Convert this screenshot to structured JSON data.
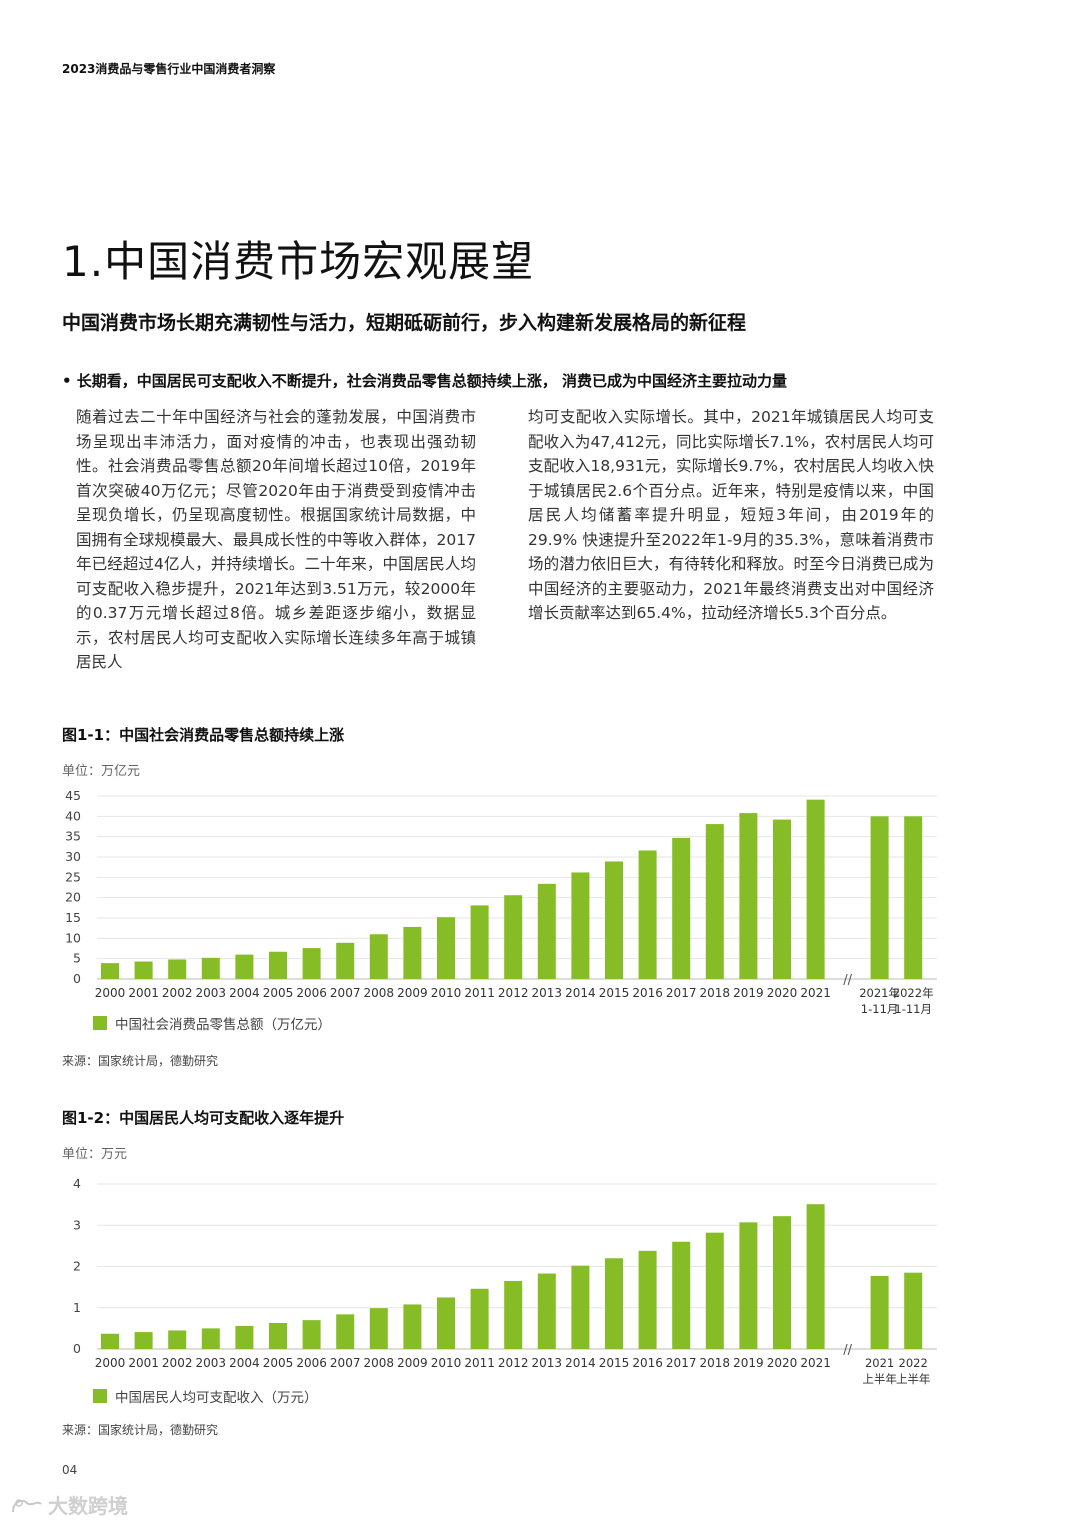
{
  "header": {
    "running_title": "2023消费品与零售行业中国消费者洞察"
  },
  "section": {
    "title": "1.中国消费市场宏观展望",
    "subtitle": "中国消费市场长期充满韧性与活力，短期砥砺前行，步入构建新发展格局的新征程",
    "bullet": "• 长期看，中国居民可支配收入不断提升，社会消费品零售总额持续上涨， 消费已成为中国经济主要拉动力量"
  },
  "body": {
    "left": "随着过去二十年中国经济与社会的蓬勃发展，中国消费市场呈现出丰沛活力，面对疫情的冲击，也表现出强劲韧性。社会消费品零售总额20年间增长超过10倍，2019年首次突破40万亿元；尽管2020年由于消费受到疫情冲击呈现负增长，仍呈现高度韧性。根据国家统计局数据，中国拥有全球规模最大、最具成长性的中等收入群体，2017年已经超过4亿人，并持续增长。二十年来，中国居民人均可支配收入稳步提升，2021年达到3.51万元，较2000年的0.37万元增长超过8倍。城乡差距逐步缩小，数据显示，农村居民人均可支配收入实际增长连续多年高于城镇居民人",
    "right": "均可支配收入实际增长。其中，2021年城镇居民人均可支配收入为47,412元，同比实际增长7.1%，农村居民人均可支配收入18,931元，实际增长9.7%，农村居民人均收入快于城镇居民2.6个百分点。近年来，特别是疫情以来，中国居民人均储蓄率提升明显，短短3年间，由2019年的29.9% 快速提升至2022年1-9月的35.3%，意味着消费市场的潜力依旧巨大，有待转化和释放。时至今日消费已成为中国经济的主要驱动力，2021年最终消费支出对中国经济增长贡献率达到65.4%，拉动经济增长5.3个百分点。"
  },
  "chart_data": [
    {
      "type": "bar",
      "title": "图1-1：中国社会消费品零售总额持续上涨",
      "unit_label": "单位：万亿元",
      "categories": [
        "2000",
        "2001",
        "2002",
        "2003",
        "2004",
        "2005",
        "2006",
        "2007",
        "2008",
        "2009",
        "2010",
        "2011",
        "2012",
        "2013",
        "2014",
        "2015",
        "2016",
        "2017",
        "2018",
        "2019",
        "2020",
        "2021"
      ],
      "values": [
        3.9,
        4.3,
        4.8,
        5.2,
        6.0,
        6.7,
        7.6,
        8.9,
        11.0,
        12.8,
        15.2,
        18.1,
        20.6,
        23.4,
        26.2,
        28.9,
        31.6,
        34.7,
        38.1,
        40.8,
        39.2,
        44.1
      ],
      "extra_categories": [
        [
          "2021年",
          "1-11月"
        ],
        [
          "2022年",
          "1-11月"
        ]
      ],
      "extra_values": [
        40.0,
        40.0
      ],
      "ylim": [
        0,
        45
      ],
      "yticks": [
        0,
        5,
        10,
        15,
        20,
        25,
        30,
        35,
        40,
        45
      ],
      "series_name": "中国社会消费品零售总额（万亿元）",
      "color": "#86bc25",
      "source": "来源：国家统计局，德勤研究"
    },
    {
      "type": "bar",
      "title": "图1-2：中国居民人均可支配收入逐年提升",
      "unit_label": "单位：万元",
      "categories": [
        "2000",
        "2001",
        "2002",
        "2003",
        "2004",
        "2005",
        "2006",
        "2007",
        "2008",
        "2009",
        "2010",
        "2011",
        "2012",
        "2013",
        "2014",
        "2015",
        "2016",
        "2017",
        "2018",
        "2019",
        "2020",
        "2021"
      ],
      "values": [
        0.37,
        0.41,
        0.45,
        0.5,
        0.56,
        0.63,
        0.7,
        0.84,
        0.99,
        1.08,
        1.25,
        1.46,
        1.65,
        1.83,
        2.02,
        2.2,
        2.38,
        2.6,
        2.82,
        3.07,
        3.22,
        3.51
      ],
      "extra_categories": [
        [
          "2021",
          "上半年"
        ],
        [
          "2022",
          "上半年"
        ]
      ],
      "extra_values": [
        1.77,
        1.85
      ],
      "ylim": [
        0,
        4
      ],
      "yticks": [
        0,
        1,
        2,
        3,
        4
      ],
      "series_name": "中国居民人均可支配收入（万元）",
      "color": "#86bc25",
      "source": "来源：国家统计局，德勤研究"
    }
  ],
  "footer": {
    "page_number": "04",
    "watermark": "大数跨境"
  }
}
